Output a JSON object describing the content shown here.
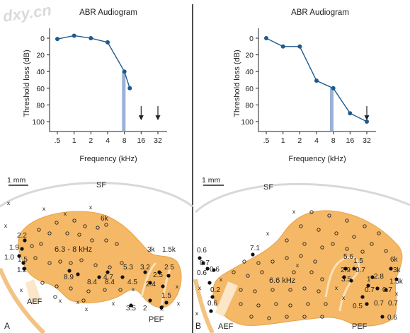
{
  "watermark": "dxy.cn",
  "chart_data": [
    {
      "type": "line",
      "title": "ABR Audiogram",
      "xlabel": "Frequency (kHz)",
      "ylabel": "Threshold loss (dB)",
      "x_ticks": [
        ".5",
        "1",
        "2",
        "4",
        "8",
        "16",
        "32"
      ],
      "y_ticks": [
        "0",
        "20",
        "40",
        "60",
        "80",
        "100"
      ],
      "ylim": [
        0,
        100
      ],
      "y_inverted": true,
      "x_scale": "log2",
      "series": [
        {
          "x": [
            0.5,
            1,
            2,
            4,
            8,
            10
          ],
          "y": [
            1,
            -3,
            0,
            5,
            40,
            60
          ]
        }
      ],
      "marker_band_khz": 7.8,
      "no_response_arrows_khz": [
        16,
        32
      ],
      "line_color": "#1f5a8c",
      "band_color": "#9bb2d6"
    },
    {
      "type": "line",
      "title": "ABR Audiogram",
      "xlabel": "Frequency (kHz)",
      "ylabel": "Threshold loss (dB)",
      "x_ticks": [
        ".5",
        "1",
        "2",
        "4",
        "8",
        "16",
        "32"
      ],
      "y_ticks": [
        "0",
        "20",
        "40",
        "60",
        "80",
        "100"
      ],
      "ylim": [
        0,
        100
      ],
      "y_inverted": true,
      "x_scale": "log2",
      "series": [
        {
          "x": [
            0.5,
            1,
            2,
            4,
            8,
            16,
            32
          ],
          "y": [
            0,
            10,
            10,
            51,
            60,
            90,
            100
          ]
        }
      ],
      "marker_band_khz": 7.5,
      "no_response_arrows_khz": [
        32
      ],
      "line_color": "#1f5a8c",
      "band_color": "#9bb2d6"
    }
  ],
  "maps": {
    "scale_bar": "1 mm",
    "sulcus_label": "SF",
    "region_color": "#f5b866",
    "a": {
      "panel_letter": "A",
      "aef": "AEF",
      "pef": "PEF",
      "center_label": "6.3 - 8 kHz",
      "labels": [
        "6k",
        "3k",
        "1.5k",
        "2.2",
        "1.9",
        "1.0",
        "1.5",
        "1.2",
        "8.9",
        "8.4",
        "8.4",
        "4.7",
        "5.3",
        "4.5",
        "3.2",
        "2.5",
        "2.5",
        "2.4",
        "1.5",
        "3.5",
        "2",
        "2"
      ]
    },
    "b": {
      "panel_letter": "B",
      "aef": "AEF",
      "pef": "PEF",
      "center_label": "6.6 kHz",
      "labels": [
        "0.6",
        "0.7",
        "0.6",
        "0.6",
        "0.2",
        "0.6",
        "7.1",
        "5.6",
        "1.5",
        "2.9",
        "0.7",
        "3.5",
        "1",
        "2.8",
        "6k",
        "3k",
        "1.5k",
        "0.7",
        "0.7",
        "0.7",
        "0.5",
        "0.7",
        "0.6"
      ]
    }
  }
}
